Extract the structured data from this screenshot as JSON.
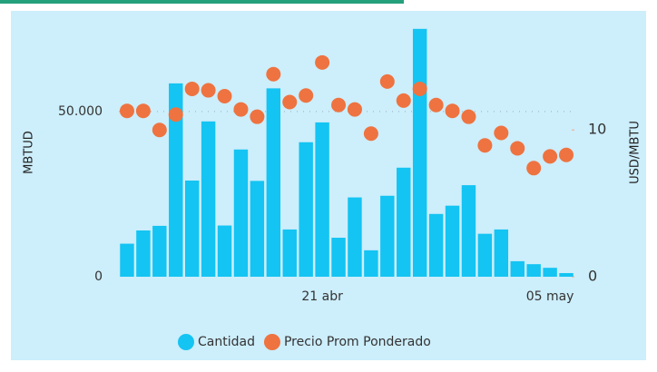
{
  "chart_data": {
    "type": "combo",
    "y_label": "MBTUD",
    "y2_label": "USD/MBTU",
    "categories": [
      null,
      null,
      null,
      null,
      null,
      null,
      null,
      null,
      null,
      null,
      null,
      null,
      "21 abr",
      null,
      null,
      null,
      null,
      null,
      null,
      null,
      null,
      null,
      null,
      null,
      null,
      null,
      "05 may",
      null
    ],
    "series": [
      {
        "name": "Cantidad",
        "type": "bar",
        "color": "#14c4f2",
        "values": [
          10000,
          14000,
          15400,
          58500,
          29100,
          47000,
          15500,
          38500,
          29000,
          57000,
          14300,
          40700,
          46700,
          11800,
          24000,
          8000,
          24500,
          33000,
          75000,
          19000,
          21500,
          27700,
          13000,
          14300,
          4700,
          3800,
          2700,
          1100
        ]
      },
      {
        "name": "Precio Prom Ponderado",
        "type": "scatter",
        "axis": "y2",
        "color": "#ee7340",
        "values": [
          11.3,
          11.3,
          10.0,
          11.05,
          12.8,
          12.7,
          12.3,
          11.4,
          10.9,
          13.8,
          11.9,
          12.35,
          14.6,
          11.7,
          11.4,
          9.75,
          13.3,
          12.0,
          12.8,
          11.7,
          11.3,
          10.9,
          8.95,
          9.8,
          8.75,
          7.4,
          8.2,
          8.3
        ]
      }
    ],
    "ylim": [
      0,
      75500
    ],
    "yticks": [
      0,
      {
        "value": 50000,
        "label": "50.000"
      }
    ],
    "y2lim": [
      0,
      17
    ],
    "y2ticks": [
      0,
      10
    ],
    "grid": true,
    "legend": "bottom"
  }
}
